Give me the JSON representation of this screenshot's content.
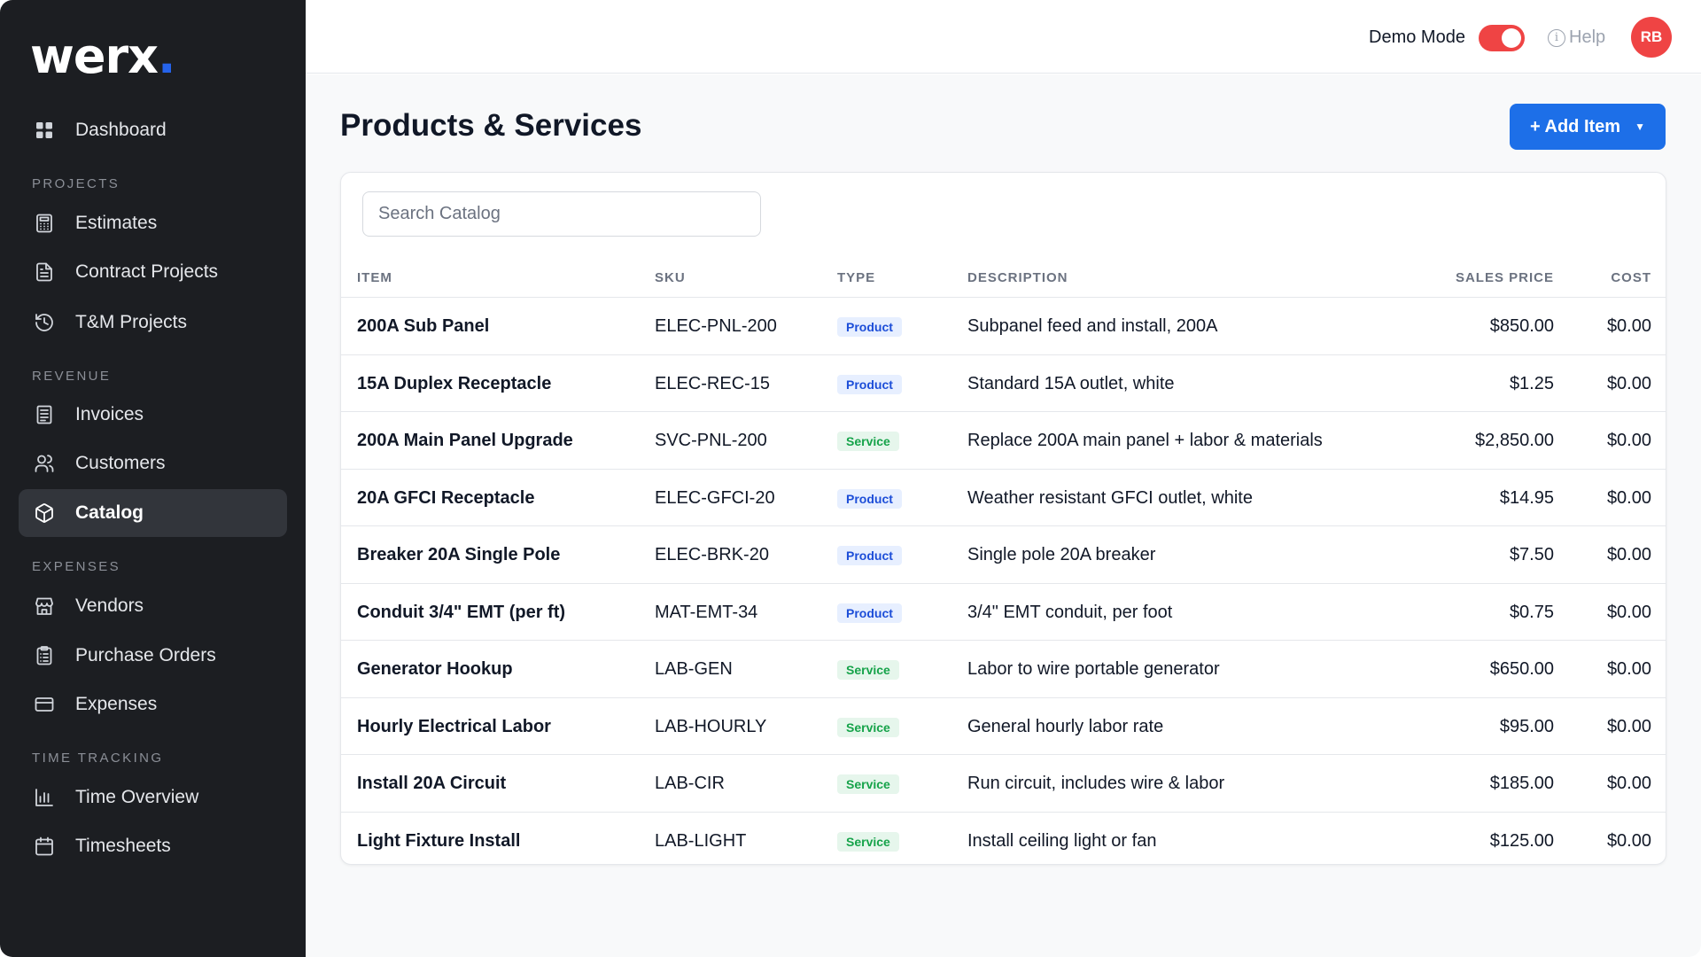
{
  "brand": {
    "name": "werx",
    "dot": "."
  },
  "sidebar": {
    "items": [
      {
        "label": "Dashboard",
        "icon": "grid-icon",
        "active": false
      },
      {
        "section": "PROJECTS"
      },
      {
        "label": "Estimates",
        "icon": "calculator-icon",
        "active": false
      },
      {
        "label": "Contract Projects",
        "icon": "document-icon",
        "active": false
      },
      {
        "label": "T&M Projects",
        "icon": "history-icon",
        "active": false
      },
      {
        "section": "REVENUE"
      },
      {
        "label": "Invoices",
        "icon": "invoice-icon",
        "active": false
      },
      {
        "label": "Customers",
        "icon": "users-icon",
        "active": false
      },
      {
        "label": "Catalog",
        "icon": "box-icon",
        "active": true
      },
      {
        "section": "EXPENSES"
      },
      {
        "label": "Vendors",
        "icon": "store-icon",
        "active": false
      },
      {
        "label": "Purchase Orders",
        "icon": "clipboard-icon",
        "active": false
      },
      {
        "label": "Expenses",
        "icon": "credit-card-icon",
        "active": false
      },
      {
        "section": "TIME TRACKING"
      },
      {
        "label": "Time Overview",
        "icon": "bar-chart-icon",
        "active": false
      },
      {
        "label": "Timesheets",
        "icon": "calendar-icon",
        "active": false
      }
    ]
  },
  "topbar": {
    "demo_mode_label": "Demo Mode",
    "demo_mode_on": true,
    "help_label": "Help",
    "avatar_initials": "RB"
  },
  "page": {
    "title": "Products & Services",
    "add_button_label": "+ Add Item",
    "search_placeholder": "Search Catalog"
  },
  "table": {
    "headers": {
      "item": "ITEM",
      "sku": "SKU",
      "type": "TYPE",
      "description": "DESCRIPTION",
      "sales_price": "SALES PRICE",
      "cost": "COST"
    },
    "rows": [
      {
        "item": "200A Sub Panel",
        "sku": "ELEC-PNL-200",
        "type": "Product",
        "description": "Subpanel feed and install, 200A",
        "price": "$850.00",
        "cost": "$0.00"
      },
      {
        "item": "15A Duplex Receptacle",
        "sku": "ELEC-REC-15",
        "type": "Product",
        "description": "Standard 15A outlet, white",
        "price": "$1.25",
        "cost": "$0.00"
      },
      {
        "item": "200A Main Panel Upgrade",
        "sku": "SVC-PNL-200",
        "type": "Service",
        "description": "Replace 200A main panel + labor & materials",
        "price": "$2,850.00",
        "cost": "$0.00"
      },
      {
        "item": "20A GFCI Receptacle",
        "sku": "ELEC-GFCI-20",
        "type": "Product",
        "description": "Weather resistant GFCI outlet, white",
        "price": "$14.95",
        "cost": "$0.00"
      },
      {
        "item": "Breaker 20A Single Pole",
        "sku": "ELEC-BRK-20",
        "type": "Product",
        "description": "Single pole 20A breaker",
        "price": "$7.50",
        "cost": "$0.00"
      },
      {
        "item": "Conduit 3/4\" EMT (per ft)",
        "sku": "MAT-EMT-34",
        "type": "Product",
        "description": "3/4\" EMT conduit, per foot",
        "price": "$0.75",
        "cost": "$0.00"
      },
      {
        "item": "Generator Hookup",
        "sku": "LAB-GEN",
        "type": "Service",
        "description": "Labor to wire portable generator",
        "price": "$650.00",
        "cost": "$0.00"
      },
      {
        "item": "Hourly Electrical Labor",
        "sku": "LAB-HOURLY",
        "type": "Service",
        "description": "General hourly labor rate",
        "price": "$95.00",
        "cost": "$0.00"
      },
      {
        "item": "Install 20A Circuit",
        "sku": "LAB-CIR",
        "type": "Service",
        "description": "Run circuit, includes wire & labor",
        "price": "$185.00",
        "cost": "$0.00"
      },
      {
        "item": "Light Fixture Install",
        "sku": "LAB-LIGHT",
        "type": "Service",
        "description": "Install ceiling light or fan",
        "price": "$125.00",
        "cost": "$0.00"
      }
    ]
  },
  "colors": {
    "sidebar_bg": "#1c1e22",
    "accent_blue": "#1d6fe8",
    "toggle_red": "#ef4444",
    "product_badge": "#1d4ed8",
    "service_badge": "#16a34a"
  }
}
